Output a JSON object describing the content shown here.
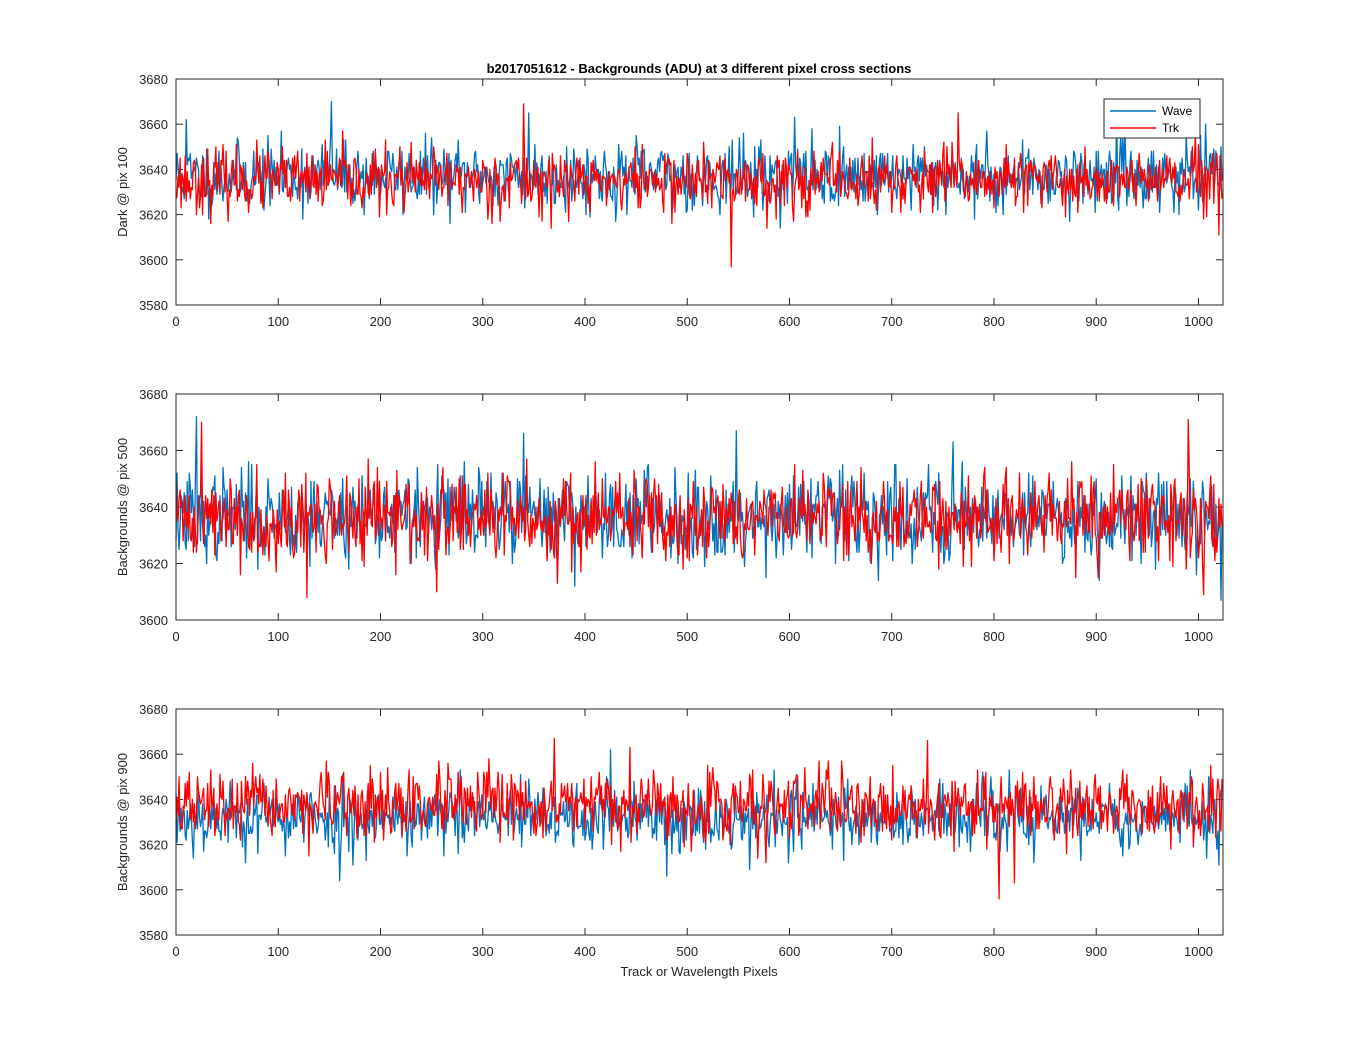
{
  "figure_title": "b2017051612 - Backgrounds (ADU) at 3 different pixel cross sections",
  "colors": {
    "wave": "#0072BD",
    "trk": "#FF0000",
    "axes": "#262626"
  },
  "chart_data": [
    {
      "type": "line",
      "title": "b2017051612 - Backgrounds (ADU) at 3 different pixel cross sections",
      "ylabel": "Dark @ pix 100",
      "xlabel": "",
      "xlim": [
        0,
        1024
      ],
      "ylim": [
        3580,
        3680
      ],
      "xticks": [
        0,
        100,
        200,
        300,
        400,
        500,
        600,
        700,
        800,
        900,
        1000
      ],
      "yticks": [
        3580,
        3600,
        3620,
        3640,
        3660,
        3680
      ],
      "legend": {
        "entries": [
          "Wave",
          "Trk"
        ],
        "location": "top-right"
      },
      "series": [
        {
          "name": "Wave",
          "color": "#0072BD",
          "n": 1024,
          "mean": 3637,
          "std": 7.5,
          "min": 3610,
          "max": 3670,
          "spikes": [
            [
              10,
              3662
            ],
            [
              152,
              3670
            ],
            [
              345,
              3665
            ],
            [
              605,
              3663
            ],
            [
              920,
              3668
            ]
          ],
          "seed": 11
        },
        {
          "name": "Trk",
          "color": "#FF0000",
          "n": 1024,
          "mean": 3635,
          "std": 7.0,
          "min": 3596,
          "max": 3669,
          "spikes": [
            [
              340,
              3669
            ],
            [
              543,
              3597
            ],
            [
              765,
              3665
            ],
            [
              1020,
              3611
            ]
          ],
          "seed": 23
        }
      ]
    },
    {
      "type": "line",
      "title": "",
      "ylabel": "Backgrounds @ pix 500",
      "xlabel": "",
      "xlim": [
        0,
        1024
      ],
      "ylim": [
        3600,
        3680
      ],
      "xticks": [
        0,
        100,
        200,
        300,
        400,
        500,
        600,
        700,
        800,
        900,
        1000
      ],
      "yticks": [
        3600,
        3620,
        3640,
        3660,
        3680
      ],
      "legend": null,
      "series": [
        {
          "name": "Wave",
          "color": "#0072BD",
          "n": 1024,
          "mean": 3637,
          "std": 8.0,
          "min": 3607,
          "max": 3672,
          "spikes": [
            [
              20,
              3672
            ],
            [
              340,
              3666
            ],
            [
              548,
              3667
            ],
            [
              760,
              3663
            ],
            [
              1022,
              3607
            ]
          ],
          "seed": 37
        },
        {
          "name": "Trk",
          "color": "#FF0000",
          "n": 1024,
          "mean": 3636,
          "std": 8.0,
          "min": 3608,
          "max": 3671,
          "spikes": [
            [
              25,
              3670
            ],
            [
              128,
              3608
            ],
            [
              255,
              3610
            ],
            [
              990,
              3671
            ],
            [
              1005,
              3609
            ]
          ],
          "seed": 41
        }
      ]
    },
    {
      "type": "line",
      "title": "",
      "ylabel": "Backgrounds @ pix 900",
      "xlabel": "Track or Wavelength Pixels",
      "xlim": [
        0,
        1024
      ],
      "ylim": [
        3580,
        3680
      ],
      "xticks": [
        0,
        100,
        200,
        300,
        400,
        500,
        600,
        700,
        800,
        900,
        1000
      ],
      "yticks": [
        3580,
        3600,
        3620,
        3640,
        3660,
        3680
      ],
      "legend": null,
      "series": [
        {
          "name": "Wave",
          "color": "#0072BD",
          "n": 1024,
          "mean": 3632,
          "std": 7.5,
          "min": 3604,
          "max": 3662,
          "spikes": [
            [
              160,
              3604
            ],
            [
              425,
              3662
            ],
            [
              480,
              3606
            ]
          ],
          "seed": 53
        },
        {
          "name": "Trk",
          "color": "#FF0000",
          "n": 1024,
          "mean": 3637,
          "std": 7.5,
          "min": 3596,
          "max": 3667,
          "spikes": [
            [
              370,
              3667
            ],
            [
              735,
              3666
            ],
            [
              805,
              3596
            ],
            [
              820,
              3603
            ]
          ],
          "seed": 67
        }
      ]
    }
  ]
}
